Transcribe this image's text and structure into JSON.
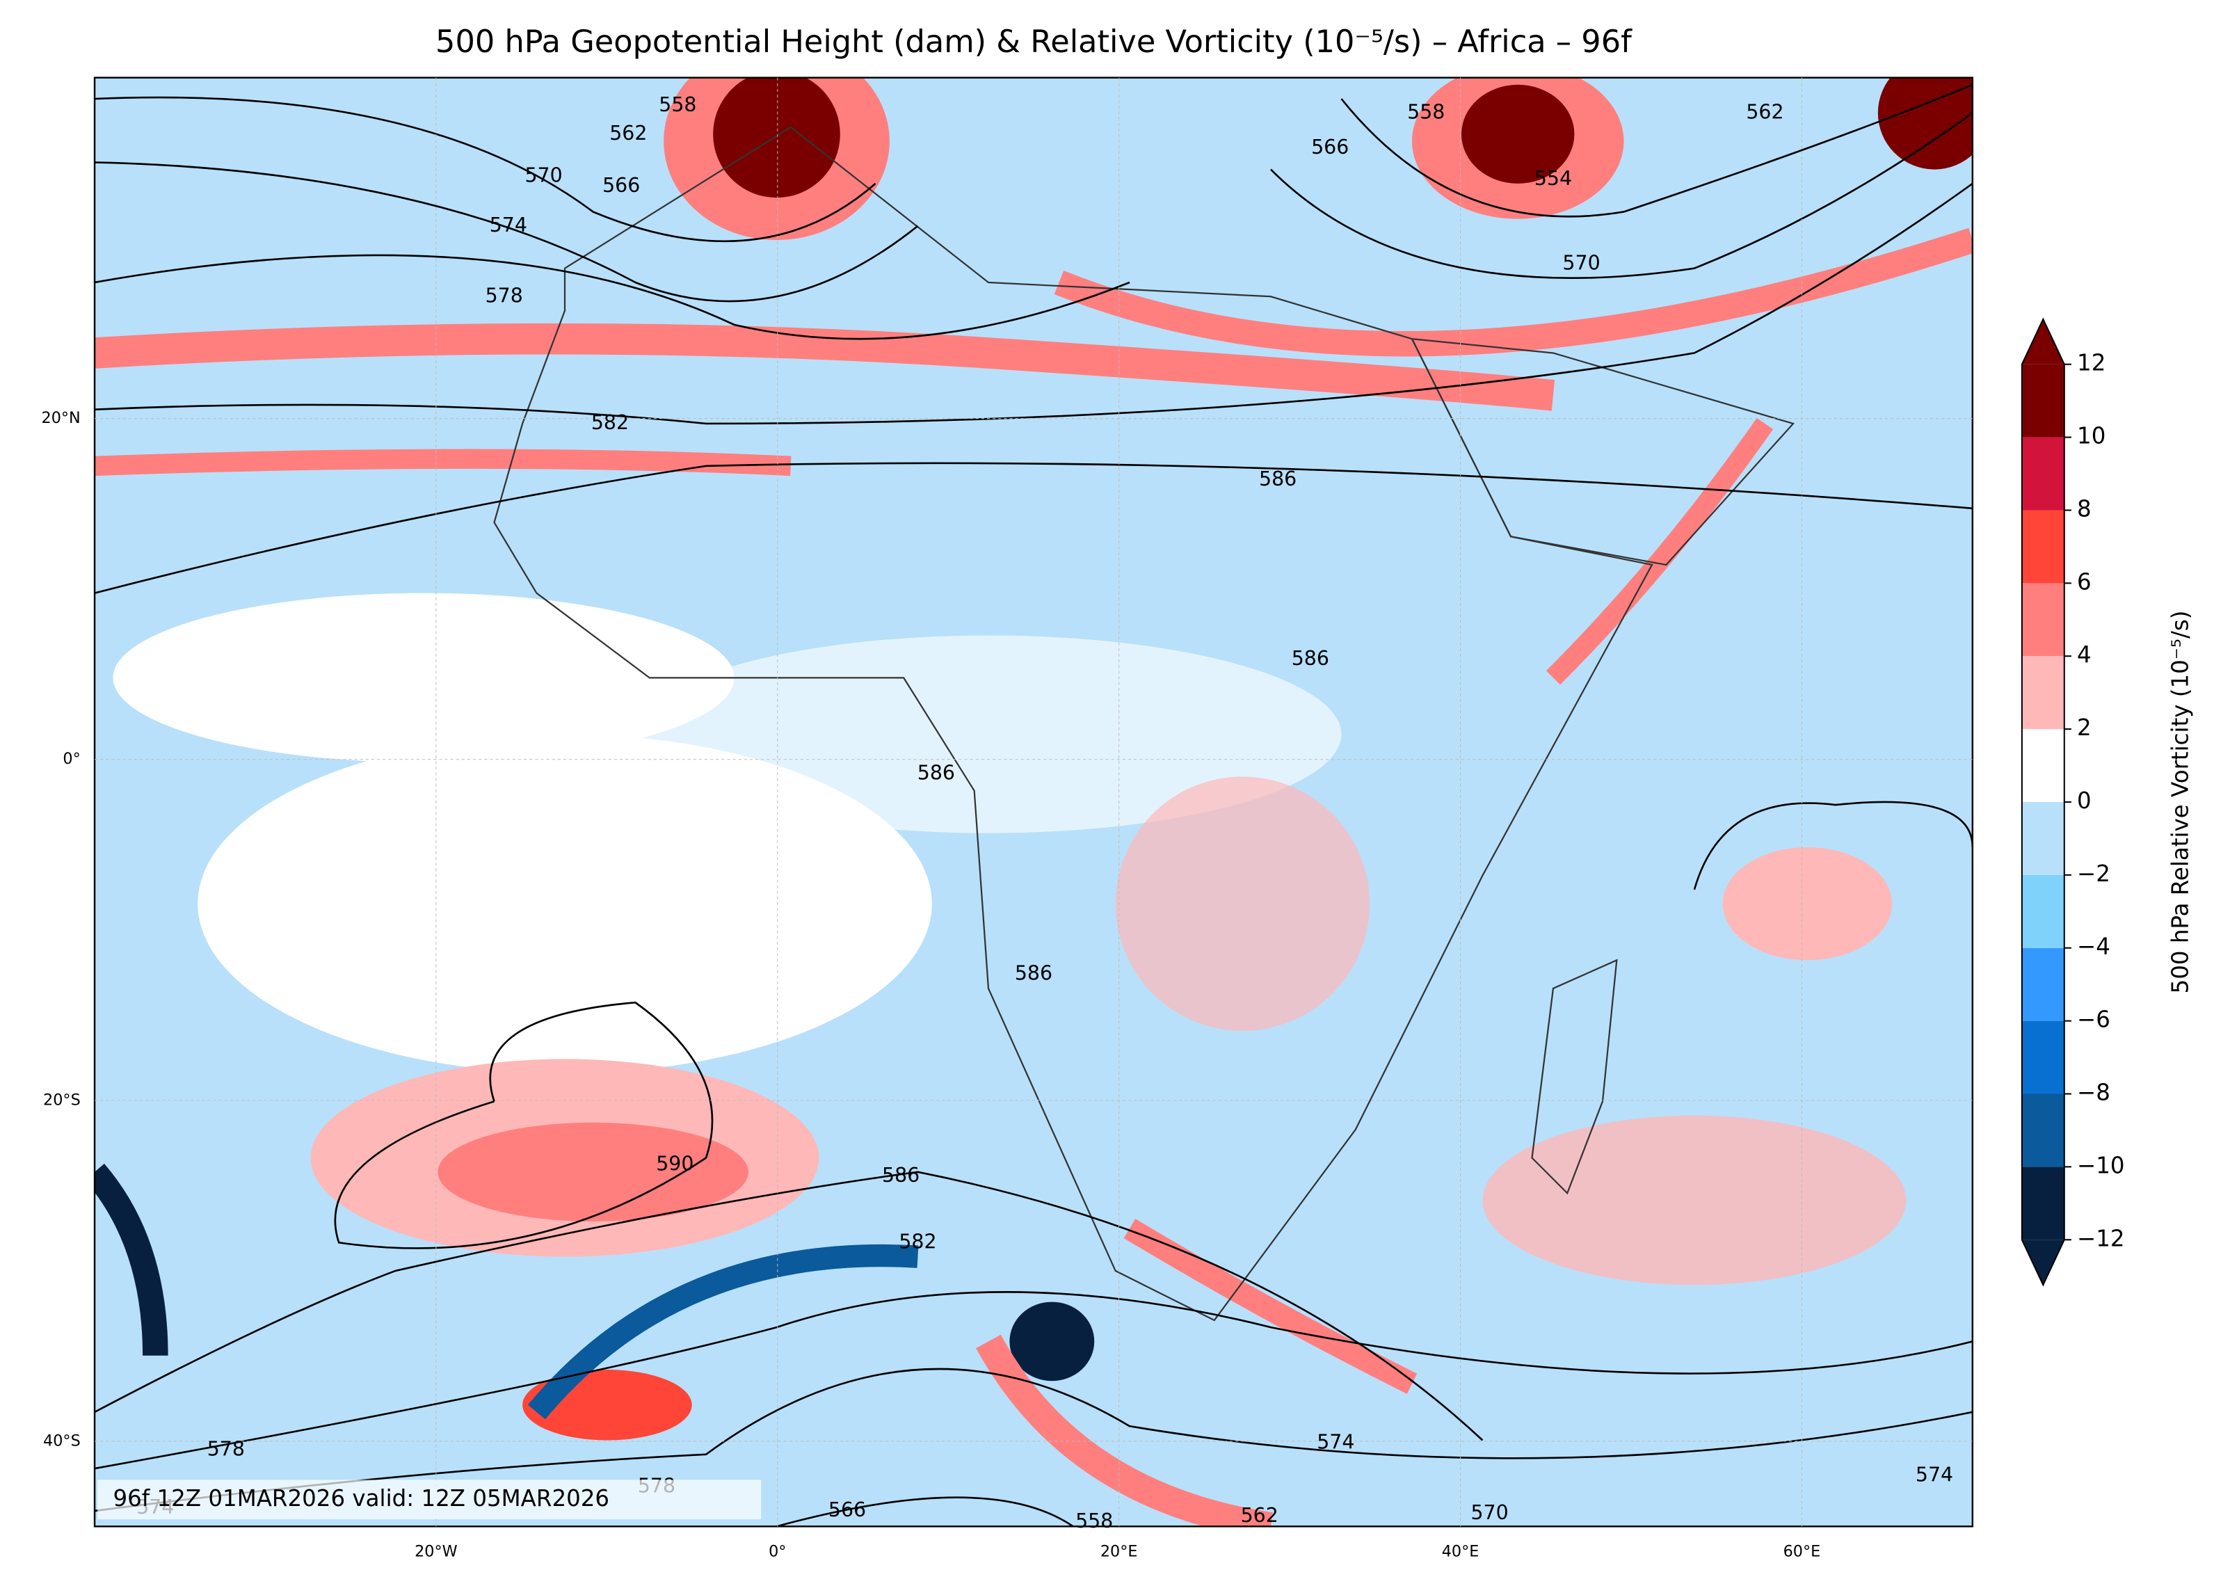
{
  "title": "500 hPa Geopotential Height (dam) & Relative Vorticity (10⁻⁵/s) – Africa – 96f",
  "map": {
    "xlim": [
      -40,
      70
    ],
    "ylim": [
      -45,
      40
    ],
    "xticks": [
      {
        "value": -20,
        "label": "20°W"
      },
      {
        "value": 0,
        "label": "0°"
      },
      {
        "value": 20,
        "label": "20°E"
      },
      {
        "value": 40,
        "label": "40°E"
      },
      {
        "value": 60,
        "label": "60°E"
      }
    ],
    "yticks": [
      {
        "value": 20,
        "label": "20°N"
      },
      {
        "value": 0,
        "label": "0°"
      },
      {
        "value": -20,
        "label": "20°S"
      },
      {
        "value": -40,
        "label": "40°S"
      }
    ],
    "contour_labels": [
      558,
      562,
      570,
      566,
      574,
      578,
      582,
      586,
      586,
      586,
      586,
      590,
      586,
      582,
      578,
      574,
      578,
      566,
      558,
      562,
      570,
      574,
      574,
      558,
      566,
      562,
      554,
      570
    ],
    "footer": "96f 12Z 01MAR2026 valid: 12Z 05MAR2026"
  },
  "colorbar": {
    "label": "500 hPa Relative Vorticity (10⁻⁵/s)",
    "ticks": [
      {
        "value": -12,
        "label": "−12"
      },
      {
        "value": -10,
        "label": "−10"
      },
      {
        "value": -8,
        "label": "−8"
      },
      {
        "value": -6,
        "label": "−6"
      },
      {
        "value": -4,
        "label": "−4"
      },
      {
        "value": -2,
        "label": "−2"
      },
      0,
      2,
      4,
      6,
      8,
      10,
      12
    ],
    "colors": [
      "#08203f",
      "#0a5a9c",
      "#0870d0",
      "#3399ff",
      "#7fd3fb",
      "#b8e0fa",
      "#ffffff",
      "#ffb8b8",
      "#ff7f7f",
      "#ff4538",
      "#d2143c",
      "#7a0000"
    ]
  }
}
